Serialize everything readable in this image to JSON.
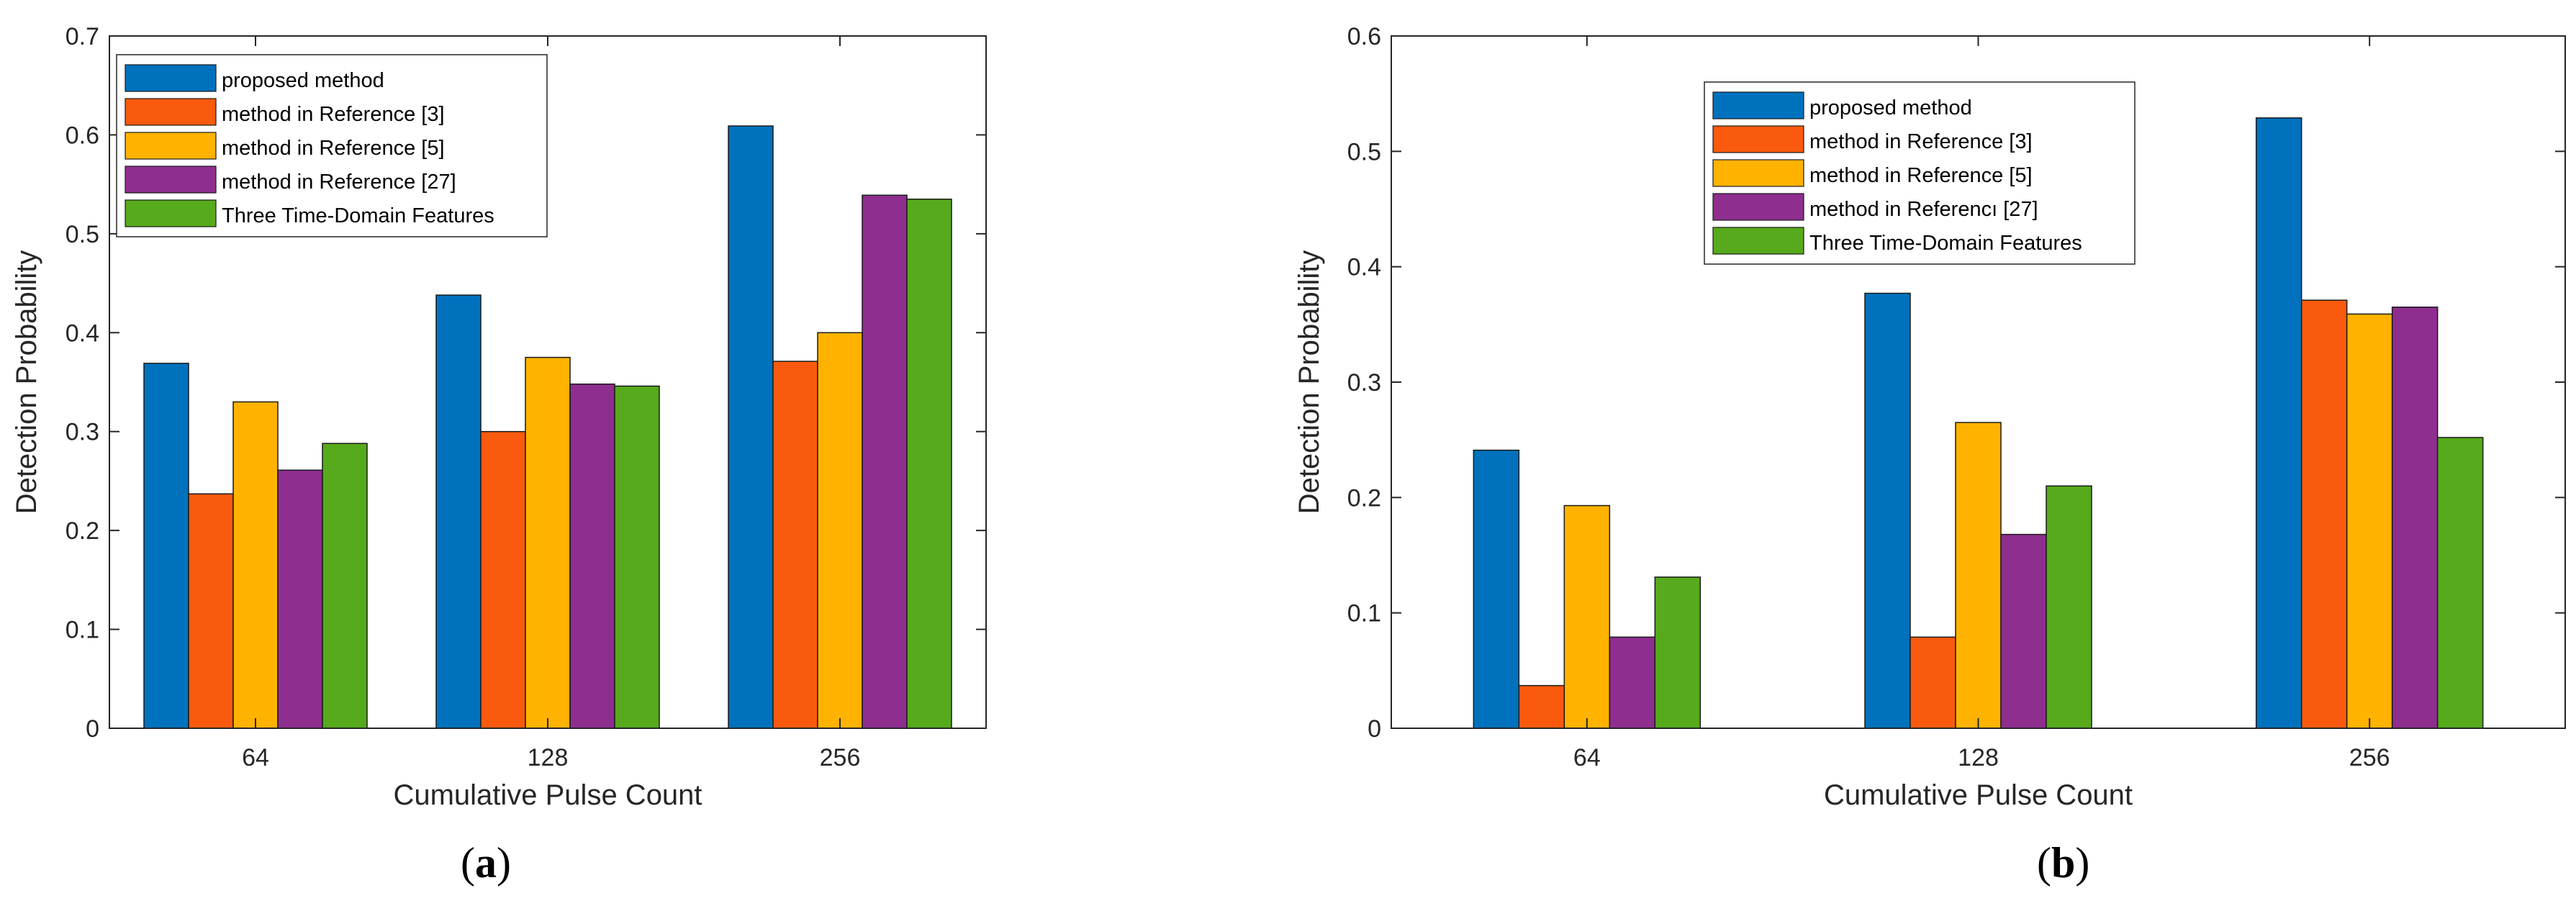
{
  "chart_data": [
    {
      "type": "bar",
      "caption_letter": "a",
      "categories": [
        "64",
        "128",
        "256"
      ],
      "xlabel": "Cumulative Pulse Count",
      "ylabel": "Detection Probability",
      "ylim": [
        0,
        0.7
      ],
      "yticks": [
        "0",
        "0.1",
        "0.2",
        "0.3",
        "0.4",
        "0.5",
        "0.6",
        "0.7"
      ],
      "legend_position": "top-left",
      "series": [
        {
          "name": "proposed method",
          "color": "#0072BD",
          "values": [
            0.369,
            0.438,
            0.609
          ]
        },
        {
          "name": "method in Reference [3]",
          "color": "#F95A0E",
          "values": [
            0.237,
            0.3,
            0.371
          ]
        },
        {
          "name": "method in Reference [5]",
          "color": "#FFB300",
          "values": [
            0.33,
            0.375,
            0.4
          ]
        },
        {
          "name": "method in Reference      [27]",
          "color": "#8E2E8F",
          "values": [
            0.261,
            0.348,
            0.539
          ]
        },
        {
          "name": "Three Time-Domain Features",
          "color": "#56AA1C",
          "values": [
            0.288,
            0.346,
            0.535
          ]
        }
      ]
    },
    {
      "type": "bar",
      "caption_letter": "b",
      "categories": [
        "64",
        "128",
        "256"
      ],
      "xlabel": "Cumulative Pulse Count",
      "ylabel": "Detection Probability",
      "ylim": [
        0,
        0.6
      ],
      "yticks": [
        "0",
        "0.1",
        "0.2",
        "0.3",
        "0.4",
        "0.5",
        "0.6"
      ],
      "legend_position": "top-left",
      "series": [
        {
          "name": "proposed method",
          "color": "#0072BD",
          "values": [
            0.241,
            0.377,
            0.529
          ]
        },
        {
          "name": "method in Reference [3]",
          "color": "#F95A0E",
          "values": [
            0.037,
            0.079,
            0.371
          ]
        },
        {
          "name": "method in Reference [5]",
          "color": "#FFB300",
          "values": [
            0.193,
            0.265,
            0.359
          ]
        },
        {
          "name": "method in Referencı   [27]",
          "color": "#8E2E8F",
          "values": [
            0.079,
            0.168,
            0.365
          ]
        },
        {
          "name": "Three Time-Domain Features",
          "color": "#56AA1C",
          "values": [
            0.131,
            0.21,
            0.252
          ]
        }
      ]
    }
  ]
}
